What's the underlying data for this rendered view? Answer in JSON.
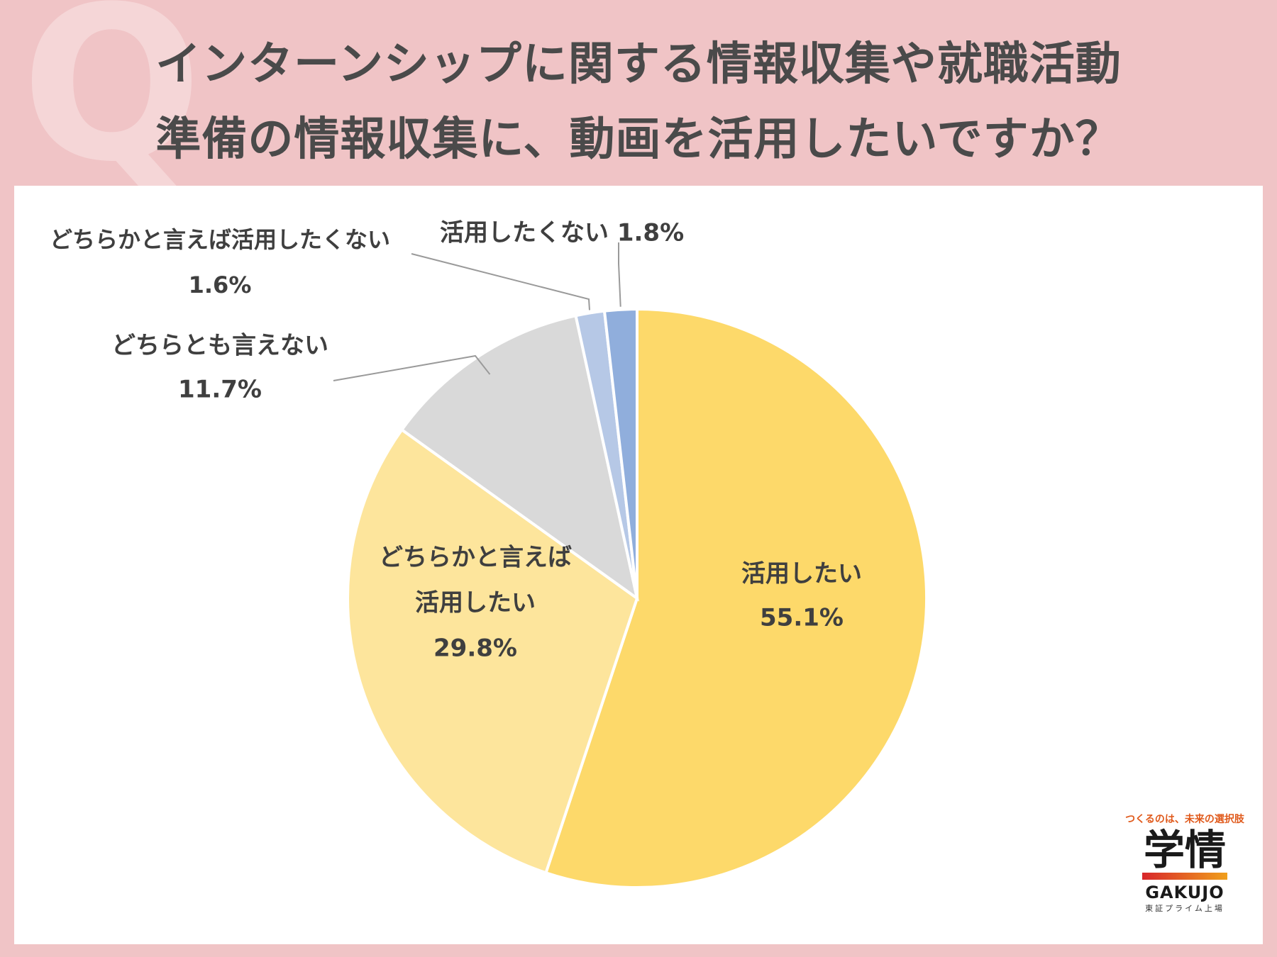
{
  "title": {
    "line1": "インターンシップに関する情報収集や就職活動",
    "line2": "準備の情報収集に、動画を活用したいですか？",
    "q_mark": "Q"
  },
  "chart_data": {
    "type": "pie",
    "categories": [
      "活用したい",
      "どちらかと言えば活用したい",
      "どちらとも言えない",
      "どちらかと言えば活用したくない",
      "活用したくない"
    ],
    "values": [
      55.1,
      29.8,
      11.7,
      1.6,
      1.8
    ],
    "unit": "%",
    "start_angle_deg": 0,
    "direction": "clockwise",
    "colors": [
      "#fdd96a",
      "#fde59c",
      "#d9d9d9",
      "#b6c8e6",
      "#90aedc"
    ],
    "labels": [
      {
        "lines": [
          "活用したい",
          "55.1%"
        ]
      },
      {
        "lines": [
          "どちらかと言えば",
          "活用したい",
          "29.8%"
        ]
      },
      {
        "lines": [
          "どちらとも言えない",
          "11.7%"
        ]
      },
      {
        "lines": [
          "どちらかと言えば活用したくない",
          "1.6%"
        ]
      },
      {
        "lines": [
          "活用したくない 1.8%"
        ]
      }
    ]
  },
  "logo": {
    "tagline": "つくるのは、未来の選択肢",
    "name": "学情",
    "en": "GAKUJO",
    "sub": "東証プライム上場"
  }
}
